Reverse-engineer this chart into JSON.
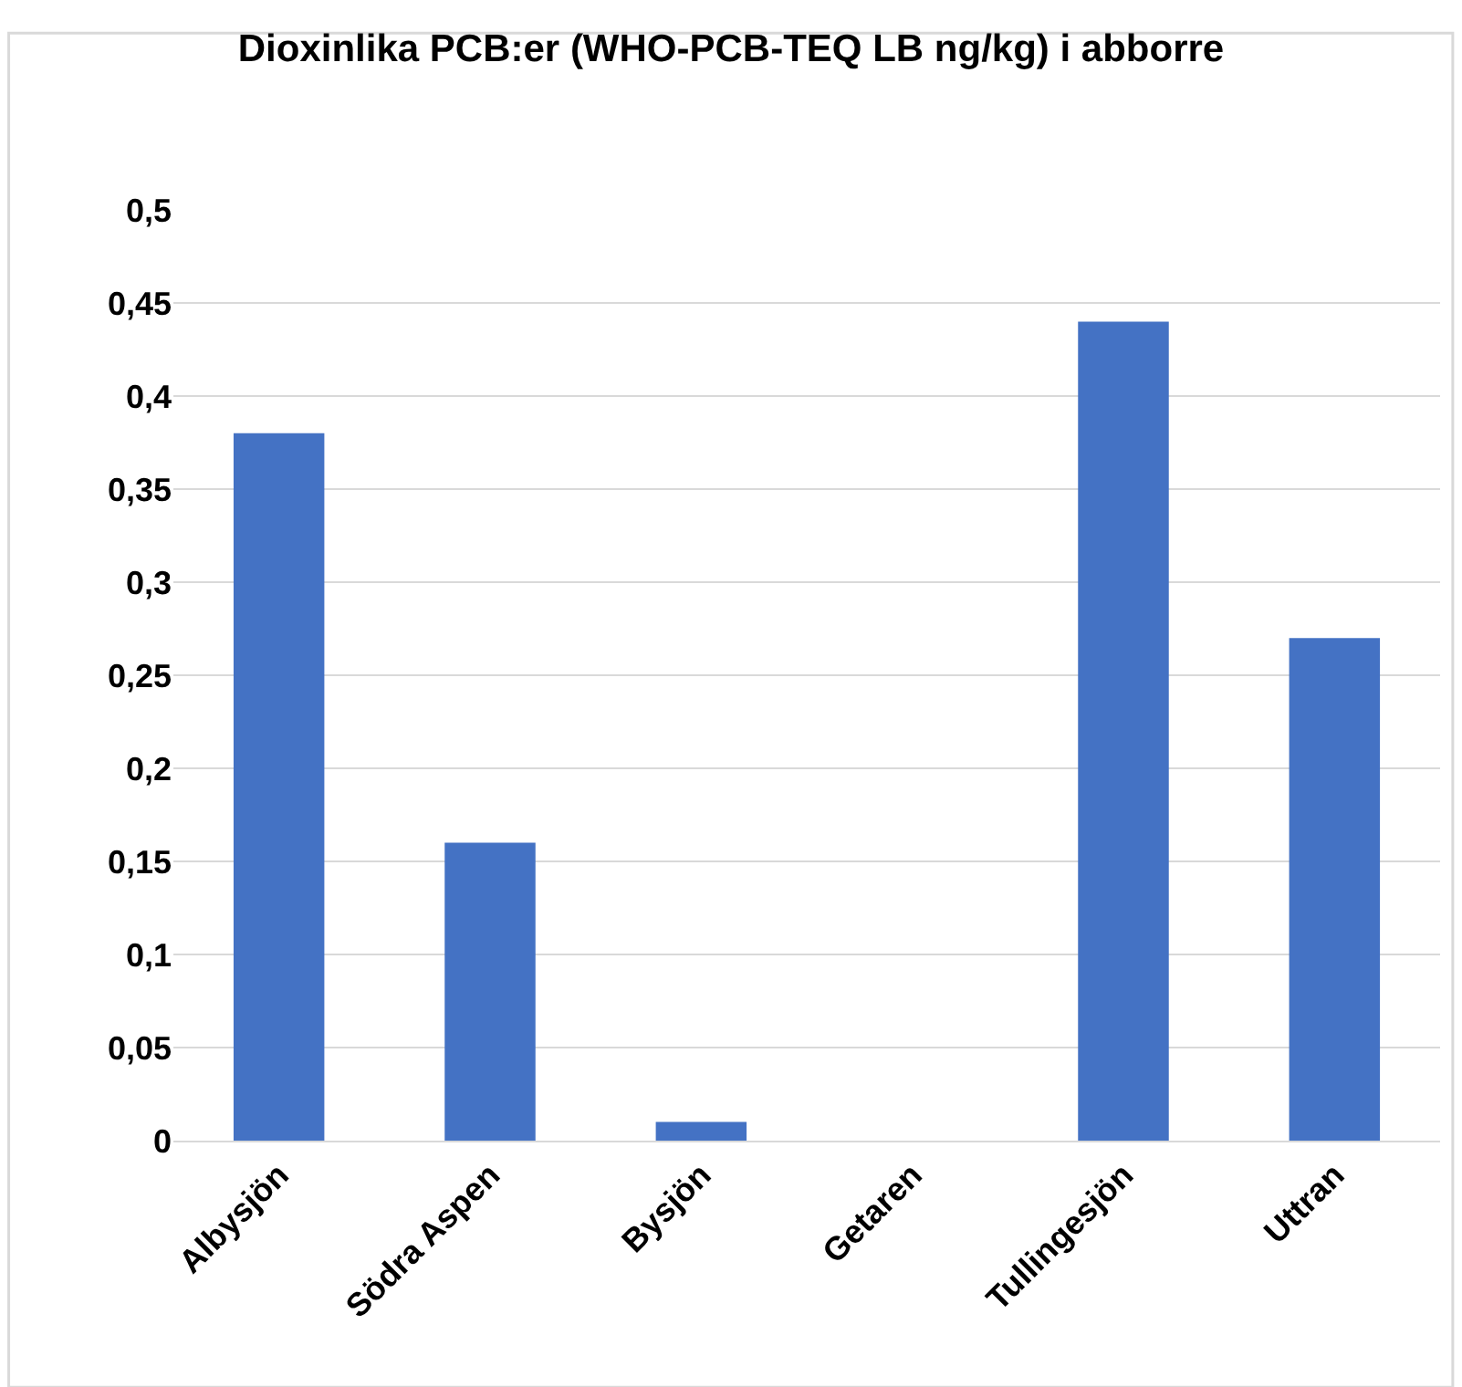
{
  "chart_data": {
    "type": "bar",
    "title": "Dioxinlika PCB:er (WHO-PCB-TEQ LB ng/kg) i abborre",
    "categories": [
      "Albysjön",
      "Södra Aspen",
      "Bysjön",
      "Getaren",
      "Tullingesjön",
      "Uttran"
    ],
    "values": [
      0.38,
      0.16,
      0.01,
      0,
      0.44,
      0.27
    ],
    "color": "#4472c4",
    "ylim": [
      0,
      0.5
    ],
    "yticks": [
      {
        "value": 0,
        "label": "0"
      },
      {
        "value": 0.05,
        "label": "0,05"
      },
      {
        "value": 0.1,
        "label": "0,1"
      },
      {
        "value": 0.15,
        "label": "0,15"
      },
      {
        "value": 0.2,
        "label": "0,2"
      },
      {
        "value": 0.25,
        "label": "0,25"
      },
      {
        "value": 0.3,
        "label": "0,3"
      },
      {
        "value": 0.35,
        "label": "0,35"
      },
      {
        "value": 0.4,
        "label": "0,4"
      },
      {
        "value": 0.45,
        "label": "0,45"
      },
      {
        "value": 0.5,
        "label": "0,5"
      }
    ],
    "grid": "y",
    "legend": false
  }
}
